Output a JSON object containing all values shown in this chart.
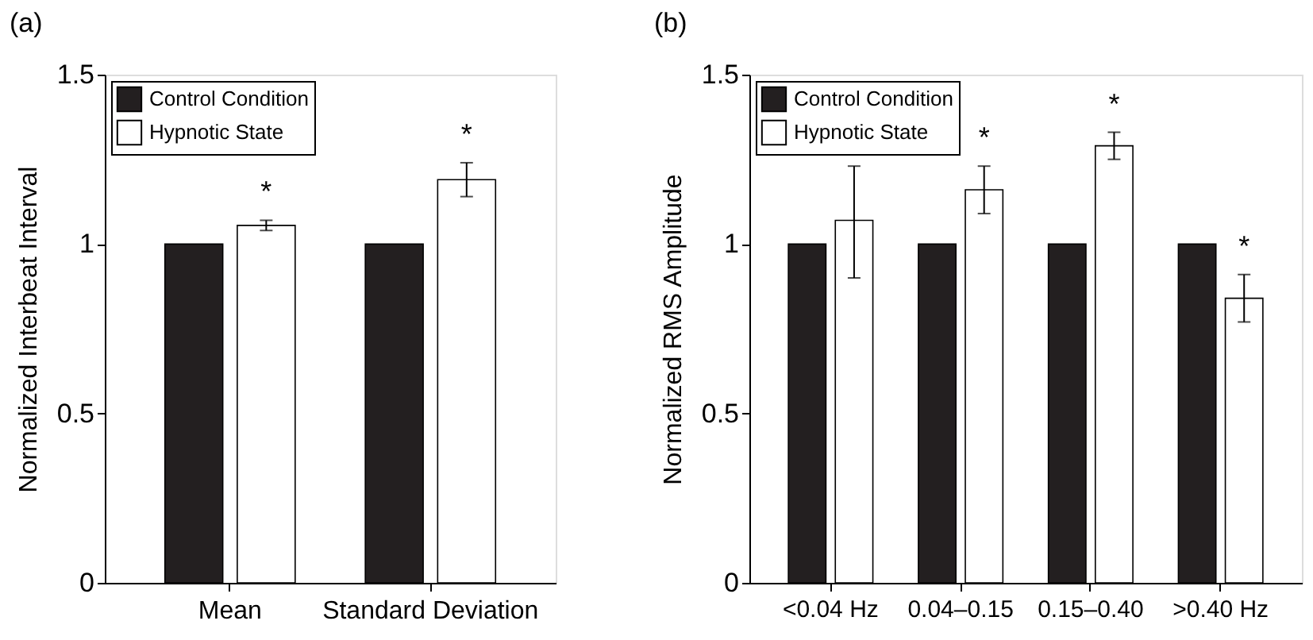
{
  "chart_data": [
    {
      "type": "bar",
      "title": "(a)",
      "ylabel": "Normalized Interbeat Interval",
      "categories": [
        "Mean",
        "Standard Deviation"
      ],
      "series": [
        {
          "name": "Control Condition",
          "color": "#231f20",
          "values": [
            1,
            1
          ]
        },
        {
          "name": "Hypnotic State",
          "color": "#ffffff",
          "values": [
            1.055,
            1.19
          ],
          "errors": [
            [
              1.04,
              1.07
            ],
            [
              1.14,
              1.24
            ]
          ],
          "value_labels": [
            "*",
            "*"
          ]
        }
      ],
      "ylim": [
        0,
        1.5
      ],
      "yticks": [
        0,
        0.5,
        1,
        1.5
      ],
      "grid": false,
      "legend": "top left"
    },
    {
      "type": "bar",
      "title": "(b)",
      "ylabel": "Normalized RMS Amplitude",
      "categories": [
        "<0.04 Hz",
        "0.04–0.15",
        "0.15–0.40",
        ">0.40 Hz"
      ],
      "series": [
        {
          "name": "Control Condition",
          "color": "#231f20",
          "values": [
            1,
            1,
            1,
            1
          ]
        },
        {
          "name": "Hypnotic State",
          "color": "#ffffff",
          "values": [
            1.07,
            1.16,
            1.29,
            0.84
          ],
          "errors": [
            [
              0.9,
              1.23
            ],
            [
              1.09,
              1.23
            ],
            [
              1.25,
              1.33
            ],
            [
              0.77,
              0.91
            ]
          ],
          "value_labels": [
            null,
            "*",
            "*",
            "*"
          ]
        }
      ],
      "ylim": [
        0,
        1.5
      ],
      "yticks": [
        0,
        0.5,
        1,
        1.5
      ],
      "grid": false,
      "legend": "top left"
    }
  ]
}
